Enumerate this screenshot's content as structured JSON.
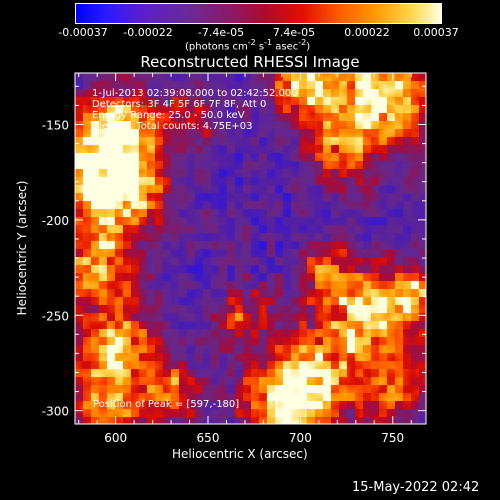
{
  "colorbar": {
    "tick_labels": [
      "-0.00037",
      "-0.00022",
      "-7.4e-05",
      "7.4e-05",
      "0.00022",
      "0.00037"
    ],
    "units_prefix": "(photons cm",
    "units_exp1": "-2",
    "units_mid1": " s",
    "units_exp2": "-1",
    "units_mid2": " asec",
    "units_exp3": "-2",
    "units_suffix": ")"
  },
  "title": "Reconstructed RHESSI Image",
  "info": {
    "time_range": "1-Jul-2013 02:39:08.000 to 02:42:52.000",
    "detectors": "Detectors: 3F 4F 5F 6F 7F 8F, Att 0",
    "energy": "Energy Range: 25.0 - 50.0 keV",
    "clean": "Clean     Total counts: 4.75E+03",
    "peak": "Position of Peak = [597,-180]"
  },
  "footer_date": "15-May-2022 02:42",
  "colors": {
    "background": "#000000",
    "colormap": [
      "#0000ff",
      "#6a00ff",
      "#5a2a8a",
      "#8b1a6a",
      "#cc0000",
      "#ff5a00",
      "#ff9a00",
      "#ffd84a",
      "#ffffd0"
    ]
  },
  "chart_data": {
    "type": "heatmap",
    "title": "Reconstructed RHESSI Image",
    "xlabel": "Heliocentric X (arcsec)",
    "ylabel": "Heliocentric Y (arcsec)",
    "xlim": [
      578,
      768
    ],
    "ylim": [
      -307,
      -123
    ],
    "xticks": [
      600,
      650,
      700,
      750
    ],
    "yticks": [
      -150,
      -200,
      -250,
      -300
    ],
    "xtick_labels": [
      "600",
      "650",
      "700",
      "750"
    ],
    "ytick_labels": [
      "-150",
      "-200",
      "-250",
      "-300"
    ],
    "colorbar_range": [
      -0.00037,
      0.00037
    ],
    "peak_position": [
      597,
      -180
    ],
    "grid": false
  }
}
